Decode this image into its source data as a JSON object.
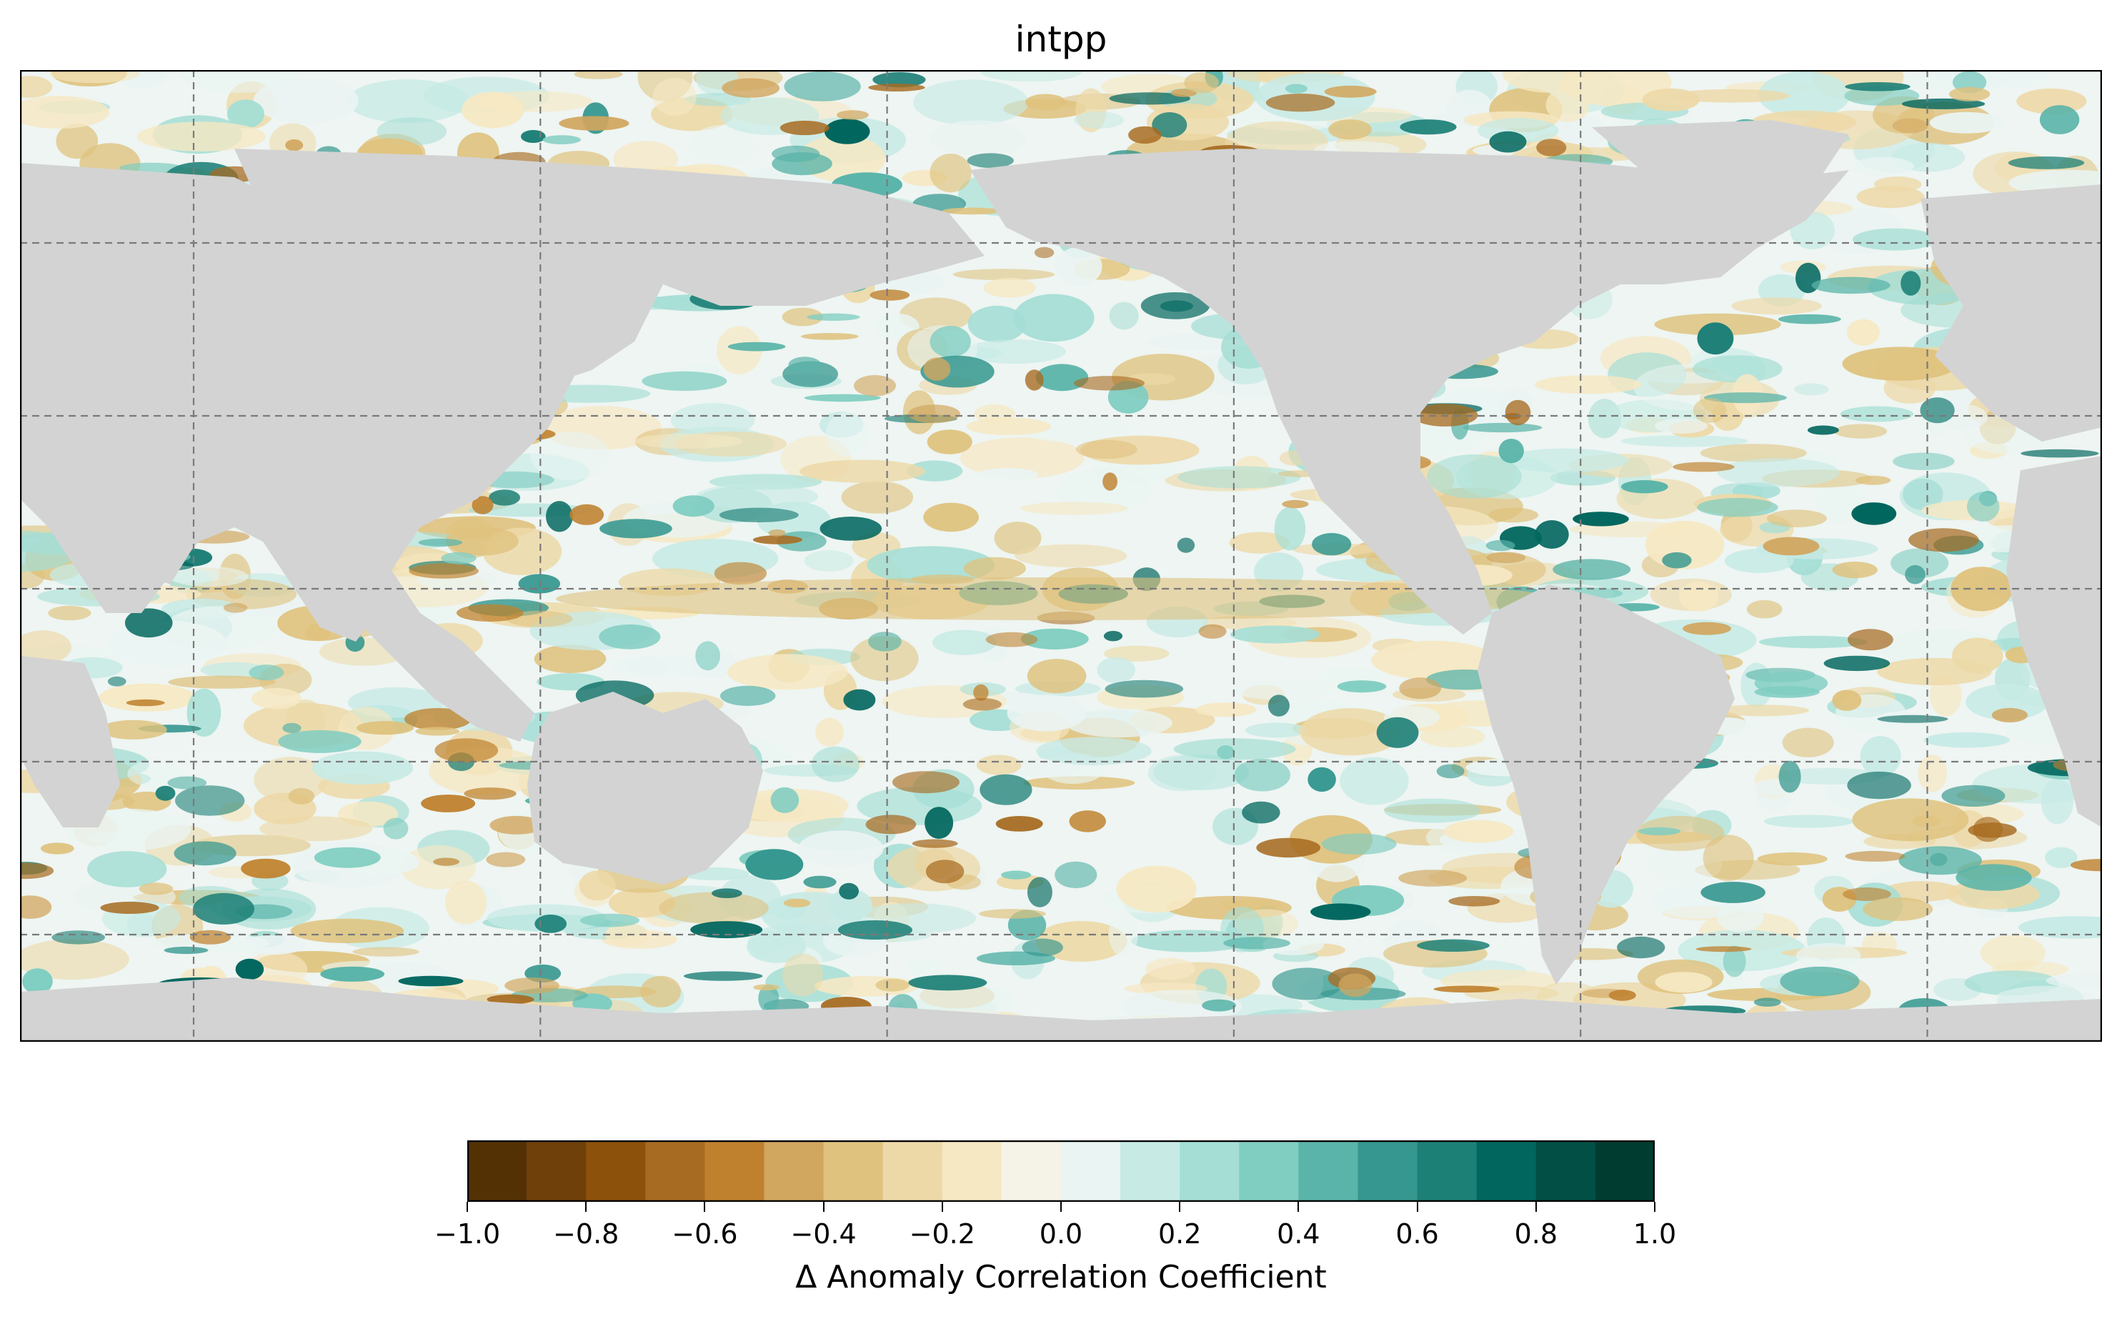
{
  "title": "intpp",
  "colorbar": {
    "label": "Δ Anomaly Correlation Coefficient",
    "range": [
      -1.0,
      1.0
    ],
    "levels": 20,
    "colors": [
      "#543005",
      "#70400b",
      "#8c510a",
      "#a76b21",
      "#bf812d",
      "#d1a65f",
      "#dfc27d",
      "#edd9a8",
      "#f6e8c3",
      "#f5f2e8",
      "#eaf4f2",
      "#c7eae5",
      "#a5ded5",
      "#80cdc1",
      "#5ab4a9",
      "#35978f",
      "#1d8077",
      "#01665e",
      "#024f46",
      "#003c30"
    ],
    "ticks": [
      "−1.0",
      "−0.8",
      "−0.6",
      "−0.4",
      "−0.2",
      "0.0",
      "0.2",
      "0.4",
      "0.6",
      "0.8",
      "1.0"
    ]
  },
  "map": {
    "projection": "global equirectangular (Pacific-centered)",
    "land_color": "#d3d3d3",
    "gridlines": "dashed grey",
    "variable": "intpp"
  }
}
